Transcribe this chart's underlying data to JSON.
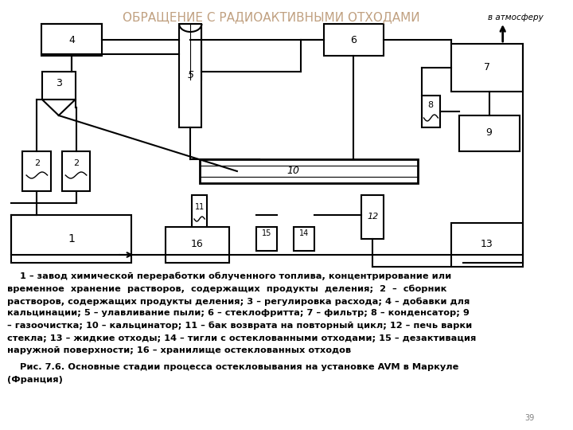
{
  "title": "ОБРАЩЕНИЕ С РАДИОАКТИВНЫМИ ОТХОДАМИ",
  "title_color": "#c0a080",
  "title_fontsize": 11,
  "bg_color": "#ffffff",
  "caption_lines": [
    "    1 – завод химической переработки облученного топлива, концентрирование или",
    "временное  хранение  растворов,  содержащих  продукты  деления;  2  –  сборник",
    "растворов, содержащих продукты деления; 3 – регулировка расхода; 4 – добавки для",
    "кальцинации; 5 – улавливание пыли; 6 – стеклофритта; 7 – фильтр; 8 – конденсатор; 9",
    "– газоочистка; 10 – кальцинатор; 11 – бак возврата на повторный цикл; 12 – печь варки",
    "стекла; 13 – жидкие отходы; 14 – тигли с остеклованными отходами; 15 – дезактивация",
    "наружной поверхности; 16 – хранилище остеклованных отходов"
  ],
  "fig_caption": "    Рис. 7.6. Основные стадии процесса остекловывания на установке AVM в Маркуле",
  "fig_caption2": "(Франция)"
}
